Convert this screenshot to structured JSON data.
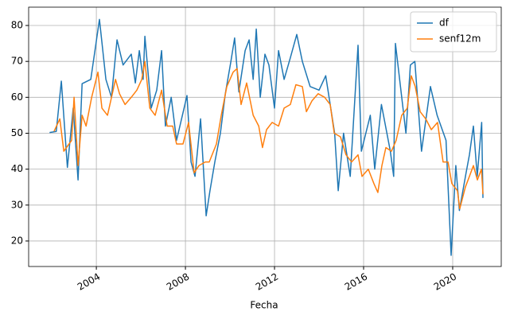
{
  "chart_data": {
    "type": "line",
    "xlabel": "Fecha",
    "xlim": [
      2000.96,
      2022.18
    ],
    "xticks": [
      2004,
      2008,
      2012,
      2016,
      2020
    ],
    "ylim": [
      12.9,
      85.1
    ],
    "yticks": [
      20,
      30,
      40,
      50,
      60,
      70,
      80
    ],
    "grid": true,
    "legend": "upper right",
    "series": [
      {
        "name": "df",
        "color": "#1f77b4",
        "x": [
          2001.9,
          2002.2,
          2002.43,
          2002.7,
          2002.96,
          2003.18,
          2003.36,
          2003.75,
          2004.14,
          2004.43,
          2004.68,
          2004.93,
          2005.2,
          2005.57,
          2005.75,
          2005.93,
          2006.1,
          2006.18,
          2006.46,
          2006.71,
          2006.93,
          2007.1,
          2007.36,
          2007.6,
          2007.9,
          2008.07,
          2008.25,
          2008.43,
          2008.68,
          2008.93,
          2009.1,
          2009.32,
          2009.57,
          2009.79,
          2010.04,
          2010.21,
          2010.4,
          2010.68,
          2010.86,
          2011.04,
          2011.18,
          2011.36,
          2011.57,
          2011.75,
          2012.0,
          2012.18,
          2012.43,
          2012.71,
          2013.0,
          2013.25,
          2013.6,
          2014.0,
          2014.3,
          2014.7,
          2014.86,
          2015.1,
          2015.4,
          2015.75,
          2015.9,
          2016.3,
          2016.5,
          2016.8,
          2017.2,
          2017.35,
          2017.43,
          2017.9,
          2018.1,
          2018.3,
          2018.6,
          2019.0,
          2019.3,
          2019.7,
          2019.93,
          2020.14,
          2020.3,
          2020.6,
          2020.75,
          2020.93,
          2021.1,
          2021.3,
          2021.36
        ],
        "values": [
          50.2,
          50.5,
          64.5,
          40.5,
          57,
          37,
          63.8,
          65,
          81.7,
          65,
          60,
          76,
          69,
          72,
          64,
          73,
          65,
          77,
          57,
          62,
          73,
          52,
          60,
          48,
          56,
          60.5,
          42,
          38,
          54,
          27,
          34,
          42,
          50,
          61,
          70,
          76.5,
          61.5,
          73,
          76,
          65,
          79,
          60,
          72,
          69,
          57,
          73,
          65,
          71,
          77.5,
          70,
          63,
          62,
          66,
          50,
          34,
          50,
          38,
          74.5,
          45,
          55,
          40,
          58,
          45,
          38,
          75,
          50,
          69,
          70,
          45,
          63,
          55,
          48,
          16,
          41,
          28.5,
          39,
          44,
          52,
          38,
          53,
          32
        ]
      },
      {
        "name": "senf12m",
        "color": "#ff7f0e",
        "x": [
          2002.1,
          2002.36,
          2002.54,
          2002.89,
          2003.0,
          2003.18,
          2003.36,
          2003.54,
          2003.79,
          2004.07,
          2004.25,
          2004.5,
          2004.86,
          2005.04,
          2005.29,
          2005.57,
          2005.82,
          2006.04,
          2006.18,
          2006.4,
          2006.64,
          2006.93,
          2007.18,
          2007.43,
          2007.6,
          2007.89,
          2008.14,
          2008.39,
          2008.61,
          2008.89,
          2009.07,
          2009.39,
          2009.61,
          2009.86,
          2010.14,
          2010.32,
          2010.5,
          2010.75,
          2011.04,
          2011.29,
          2011.46,
          2011.64,
          2011.89,
          2012.18,
          2012.43,
          2012.71,
          2012.96,
          2013.25,
          2013.43,
          2013.68,
          2013.96,
          2014.25,
          2014.5,
          2014.68,
          2014.96,
          2015.21,
          2015.46,
          2015.75,
          2015.93,
          2016.21,
          2016.46,
          2016.64,
          2016.82,
          2017.0,
          2017.25,
          2017.46,
          2017.71,
          2017.96,
          2018.14,
          2018.32,
          2018.54,
          2018.79,
          2019.04,
          2019.32,
          2019.57,
          2019.79,
          2019.96,
          2020.21,
          2020.32,
          2020.57,
          2020.75,
          2020.93,
          2021.11,
          2021.29,
          2021.36
        ],
        "values": [
          50.5,
          54,
          45,
          48,
          60,
          41,
          55,
          52,
          60,
          67,
          57,
          55,
          65,
          61,
          58,
          60,
          62,
          65,
          70,
          57,
          55,
          62,
          52,
          52,
          47,
          47,
          53,
          39,
          41,
          42,
          42,
          47,
          55,
          63,
          67,
          68,
          58,
          64,
          55,
          52,
          46,
          51,
          53,
          52,
          57,
          58,
          63.5,
          63,
          56,
          59,
          61,
          60,
          58,
          50,
          49,
          44,
          42,
          44,
          38,
          40,
          36,
          33.5,
          41,
          46,
          45,
          48,
          55,
          57,
          66,
          63,
          56,
          54,
          51,
          53,
          42,
          42,
          36,
          34,
          29,
          35,
          38,
          41,
          37,
          40,
          33
        ]
      }
    ]
  }
}
